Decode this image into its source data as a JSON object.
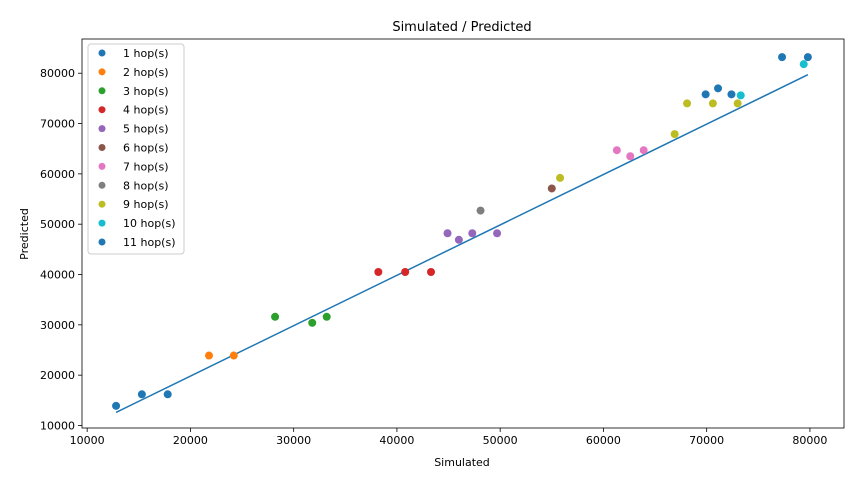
{
  "chart_data": {
    "type": "scatter",
    "title": "Simulated / Predicted",
    "xlabel": "Simulated",
    "ylabel": "Predicted",
    "xlim": [
      9500,
      83300
    ],
    "ylim": [
      9500,
      86800
    ],
    "xticks": [
      10000,
      20000,
      30000,
      40000,
      50000,
      60000,
      70000,
      80000
    ],
    "yticks": [
      10000,
      20000,
      30000,
      40000,
      50000,
      60000,
      70000,
      80000
    ],
    "xtick_labels": [
      "10000",
      "20000",
      "30000",
      "40000",
      "50000",
      "60000",
      "70000",
      "80000"
    ],
    "ytick_labels": [
      "10000",
      "20000",
      "30000",
      "40000",
      "50000",
      "60000",
      "70000",
      "80000"
    ],
    "grid": false,
    "legend_position": "top-left",
    "fit_line": {
      "color": "#1f77b4",
      "x": [
        12800,
        79800
      ],
      "y": [
        12600,
        79700
      ]
    },
    "series": [
      {
        "name": "1 hop(s)",
        "color": "#1f77b4",
        "points": [
          [
            12800,
            13900
          ],
          [
            15300,
            16200
          ],
          [
            17800,
            16200
          ]
        ]
      },
      {
        "name": "2 hop(s)",
        "color": "#ff7f0e",
        "points": [
          [
            21800,
            23900
          ],
          [
            24200,
            23900
          ]
        ]
      },
      {
        "name": "3 hop(s)",
        "color": "#2ca02c",
        "points": [
          [
            28200,
            31600
          ],
          [
            31800,
            30400
          ],
          [
            33200,
            31600
          ]
        ]
      },
      {
        "name": "4 hop(s)",
        "color": "#d62728",
        "points": [
          [
            38200,
            40500
          ],
          [
            40800,
            40500
          ],
          [
            43300,
            40500
          ]
        ]
      },
      {
        "name": "5 hop(s)",
        "color": "#9467bd",
        "points": [
          [
            44900,
            48200
          ],
          [
            46000,
            46900
          ],
          [
            47300,
            48200
          ],
          [
            49700,
            48200
          ]
        ]
      },
      {
        "name": "6 hop(s)",
        "color": "#8c564b",
        "points": [
          [
            55000,
            57100
          ]
        ]
      },
      {
        "name": "7 hop(s)",
        "color": "#e377c2",
        "points": [
          [
            61300,
            64700
          ],
          [
            62600,
            63500
          ],
          [
            63900,
            64700
          ]
        ]
      },
      {
        "name": "8 hop(s)",
        "color": "#7f7f7f",
        "points": [
          [
            48100,
            52700
          ]
        ]
      },
      {
        "name": "9 hop(s)",
        "color": "#bcbd22",
        "points": [
          [
            55800,
            59200
          ],
          [
            66900,
            67900
          ],
          [
            68100,
            74000
          ],
          [
            70600,
            74000
          ],
          [
            73000,
            74000
          ]
        ]
      },
      {
        "name": "10 hop(s)",
        "color": "#17becf",
        "points": [
          [
            73300,
            75600
          ],
          [
            79400,
            81800
          ]
        ]
      },
      {
        "name": "11 hop(s)",
        "color": "#1f77b4",
        "points": [
          [
            69900,
            75800
          ],
          [
            71100,
            77000
          ],
          [
            72400,
            75800
          ],
          [
            77300,
            83200
          ],
          [
            79800,
            83200
          ]
        ]
      }
    ]
  }
}
